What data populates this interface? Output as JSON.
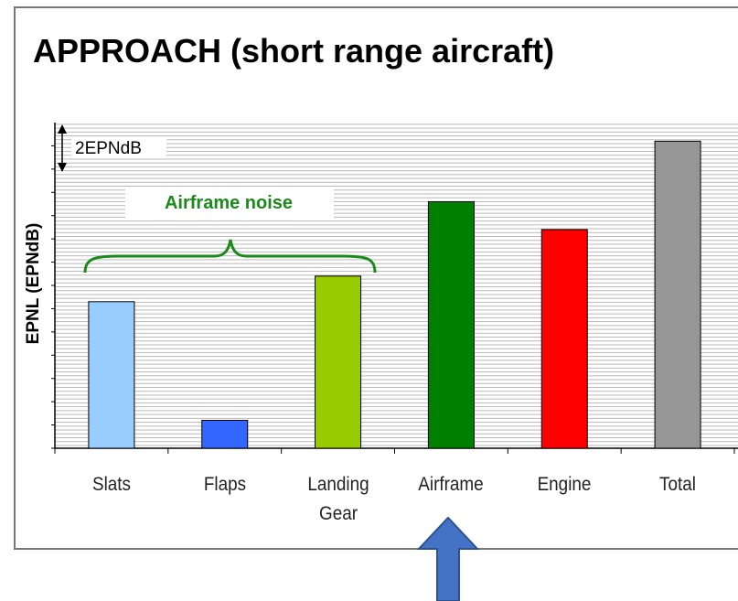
{
  "chart_data": {
    "type": "bar",
    "title": "APPROACH (short range aircraft)",
    "y_label": "EPNL (EPNdB)",
    "annotations": [
      "2EPNdB",
      "Airframe noise"
    ],
    "categories": [
      "Slats",
      "Flaps",
      "Landing Gear",
      "Airframe",
      "Engine",
      "Total"
    ],
    "values": [
      6.3,
      1.2,
      7.4,
      10.6,
      9.4,
      13.2
    ],
    "colors": [
      "#99ccff",
      "#3366ff",
      "#99cc00",
      "#008000",
      "#ff0000",
      "#969696"
    ],
    "ylim": [
      0,
      14
    ],
    "yticks": [
      0,
      1,
      2,
      3,
      4,
      5,
      6,
      7,
      8,
      9,
      10,
      11,
      12,
      13
    ]
  }
}
